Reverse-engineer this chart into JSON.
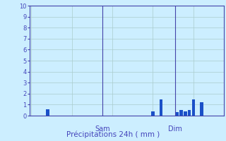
{
  "ylabel_values": [
    0,
    1,
    2,
    3,
    4,
    5,
    6,
    7,
    8,
    9,
    10
  ],
  "ylim": [
    0,
    10
  ],
  "background_color": "#cceeff",
  "bar_color": "#1a50c8",
  "grid_color": "#aacccc",
  "axis_color": "#4444aa",
  "text_color": "#4444bb",
  "xlabel": "Précipitations 24h ( mm )",
  "day_labels": [
    "Sam",
    "Dim"
  ],
  "num_bars": 48,
  "bar_data": [
    0,
    0,
    0,
    0,
    0.6,
    0,
    0,
    0,
    0,
    0,
    0,
    0,
    0,
    0,
    0,
    0,
    0,
    0,
    0,
    0,
    0,
    0,
    0,
    0,
    0,
    0,
    0,
    0,
    0,
    0,
    0.4,
    0,
    1.5,
    0,
    0,
    0,
    0,
    0,
    0,
    0,
    0,
    0,
    0,
    0,
    0,
    0,
    0,
    0
  ],
  "bar_data2": [
    0,
    0,
    0,
    0,
    0.6,
    0,
    0,
    0,
    0,
    0,
    0,
    0,
    0,
    0,
    0,
    0,
    0,
    0,
    0,
    0,
    0,
    0,
    0,
    0,
    0,
    0,
    0,
    0,
    0,
    0,
    0.4,
    0,
    1.5,
    0,
    0,
    0,
    0.3,
    0.5,
    0.4,
    0.5,
    1.5,
    0,
    1.2,
    0,
    0,
    0,
    0,
    0
  ],
  "sam_index": 18,
  "dim_index": 36,
  "figsize": [
    3.2,
    2.0
  ],
  "dpi": 100
}
